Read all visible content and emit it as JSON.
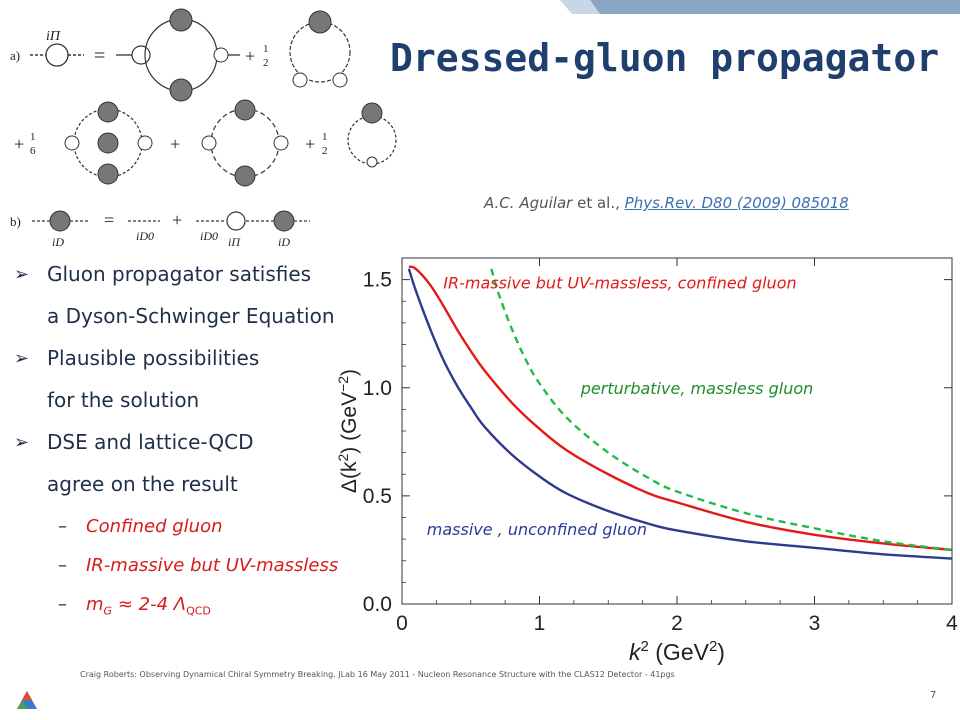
{
  "slide": {
    "title": "Dressed-gluon propagator",
    "citation_author": "A.C. Aguilar",
    "citation_etal": "et al.,",
    "citation_link": "Phys.Rev. D80 (2009) 085018",
    "footer": "Craig Roberts: Observing Dynamical Chiral Symmetry Breaking. JLab 16 May 2011 - Nucleon Resonance Structure with the CLAS12 Detector - 41pgs",
    "page_number": "7"
  },
  "diagram": {
    "labels": {
      "a": "a)",
      "b": "b)",
      "iPi": "iΠ",
      "iD": "iD",
      "iD0": "iD0",
      "iPi2": "iΠ",
      "eq": "=",
      "plus": "+",
      "half": "1",
      "half_den": "2",
      "sixth": "1",
      "sixth_den": "6"
    }
  },
  "bullets": [
    {
      "line1": "Gluon propagator satisfies",
      "line2": "a Dyson-Schwinger Equation"
    },
    {
      "line1": "Plausible possibilities",
      "line2": "for the solution"
    },
    {
      "line1": "DSE and lattice-QCD",
      "line2": "agree on the result"
    }
  ],
  "sub_bullets": [
    "Confined gluon",
    "IR-massive but UV-massless",
    "m",
    "G",
    "≈ 2-4 Λ",
    "QCD"
  ],
  "chart_data": {
    "type": "line",
    "title": "",
    "xlabel": "k",
    "xlabel_sup": "2",
    "xunit": "(GeV",
    "xunit_sup": "2",
    "xunit_close": ")",
    "ylabel": "Δ(k",
    "ylabel_sup": "2",
    "ylabel_mid": ") (GeV",
    "ylabel_unit_sup": "−2",
    "ylabel_close": ")",
    "xlim": [
      0,
      4
    ],
    "ylim": [
      0,
      1.6
    ],
    "x_ticks": [
      "0",
      "1",
      "2",
      "3",
      "4"
    ],
    "y_ticks": [
      "0.0",
      "0.5",
      "1.0",
      "1.5"
    ],
    "x_tick_values": [
      0,
      1,
      2,
      3,
      4
    ],
    "y_tick_values": [
      0,
      0.5,
      1.0,
      1.5
    ],
    "series": [
      {
        "label": "IR-massive but UV-massless, confined gluon",
        "color": "#e31a1a",
        "style": "solid",
        "x": [
          0.05,
          0.1,
          0.2,
          0.3,
          0.4,
          0.5,
          0.6,
          0.8,
          1.0,
          1.2,
          1.5,
          1.8,
          2.0,
          2.5,
          3.0,
          3.5,
          4.0
        ],
        "y": [
          1.56,
          1.55,
          1.48,
          1.38,
          1.27,
          1.17,
          1.08,
          0.93,
          0.81,
          0.71,
          0.6,
          0.51,
          0.47,
          0.38,
          0.32,
          0.28,
          0.25
        ]
      },
      {
        "label": "perturbative, massless gluon",
        "color": "#22bb44",
        "style": "dashed",
        "x": [
          0.65,
          0.7,
          0.8,
          0.9,
          1.0,
          1.2,
          1.5,
          1.8,
          2.0,
          2.5,
          3.0,
          3.5,
          4.0
        ],
        "y": [
          1.55,
          1.44,
          1.27,
          1.13,
          1.02,
          0.86,
          0.7,
          0.58,
          0.52,
          0.42,
          0.35,
          0.29,
          0.25
        ]
      },
      {
        "label": "massive , unconfined gluon",
        "color": "#2e3a8c",
        "style": "solid",
        "x": [
          0.05,
          0.1,
          0.2,
          0.3,
          0.4,
          0.5,
          0.6,
          0.8,
          1.0,
          1.2,
          1.5,
          1.8,
          2.0,
          2.5,
          3.0,
          3.5,
          4.0
        ],
        "y": [
          1.55,
          1.45,
          1.28,
          1.13,
          1.01,
          0.91,
          0.82,
          0.69,
          0.59,
          0.51,
          0.43,
          0.37,
          0.34,
          0.29,
          0.26,
          0.23,
          0.21
        ]
      }
    ]
  }
}
